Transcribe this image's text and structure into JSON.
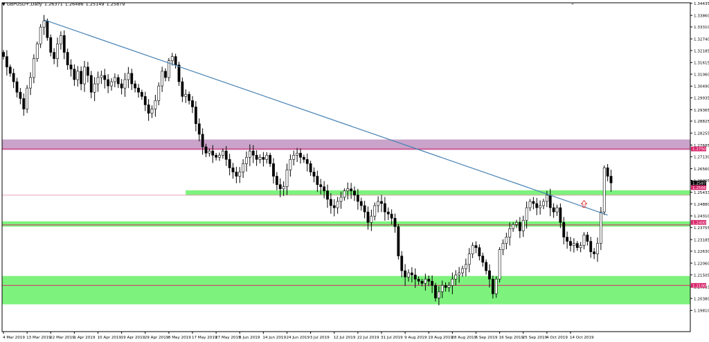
{
  "header": {
    "dropdown_glyph": "▼",
    "symbol": "GBPUSD+,Daily",
    "open": "1.26371",
    "high": "1.26486",
    "low": "1.25149",
    "close": "1.25879"
  },
  "chart_data": {
    "type": "candlestick",
    "symbol": "GBPUSD+",
    "timeframe": "Daily",
    "ylim": [
      1.188,
      1.3446
    ],
    "y_ticks": [
      "1.34435",
      "1.33860",
      "1.33310",
      "1.32740",
      "1.32185",
      "1.31615",
      "1.31060",
      "1.30490",
      "1.29935",
      "1.29365",
      "1.28825",
      "1.28255",
      "1.27685",
      "1.27130",
      "1.26560",
      "1.26005",
      "1.25433",
      "1.24880",
      "1.24310",
      "1.23755",
      "1.23185",
      "1.22630",
      "1.22060",
      "1.21505",
      "1.20935",
      "1.20380",
      "1.19810"
    ],
    "x_ticks": [
      "4 Mar 2019",
      "13 Mar 2019",
      "22 Mar 2019",
      "1 Apr 2019",
      "10 Apr 2019",
      "19 Apr 2019",
      "29 Apr 2019",
      "8 May 2019",
      "17 May 2019",
      "27 May 2019",
      "5 Jun 2019",
      "14 Jun 2019",
      "24 Jun 2019",
      "3 Jul 2019",
      "12 Jul 2019",
      "22 Jul 2019",
      "31 Jul 2019",
      "9 Aug 2019",
      "19 Aug 2019",
      "28 Aug 2019",
      "6 Sep 2019",
      "16 Sep 2019",
      "25 Sep 2019",
      "4 Oct 2019",
      "14 Oct 2019"
    ],
    "close_series": [
      1.319,
      1.314,
      1.311,
      1.307,
      1.302,
      1.299,
      1.294,
      1.304,
      1.309,
      1.318,
      1.325,
      1.333,
      1.336,
      1.328,
      1.321,
      1.318,
      1.325,
      1.329,
      1.321,
      1.315,
      1.313,
      1.308,
      1.312,
      1.306,
      1.314,
      1.31,
      1.302,
      1.306,
      1.309,
      1.31,
      1.308,
      1.305,
      1.307,
      1.309,
      1.306,
      1.304,
      1.308,
      1.311,
      1.306,
      1.304,
      1.302,
      1.3,
      1.296,
      1.292,
      1.294,
      1.298,
      1.305,
      1.312,
      1.309,
      1.317,
      1.319,
      1.315,
      1.307,
      1.3,
      1.301,
      1.298,
      1.295,
      1.287,
      1.282,
      1.276,
      1.273,
      1.274,
      1.272,
      1.271,
      1.272,
      1.274,
      1.27,
      1.266,
      1.264,
      1.262,
      1.264,
      1.268,
      1.271,
      1.274,
      1.272,
      1.27,
      1.271,
      1.27,
      1.272,
      1.268,
      1.262,
      1.258,
      1.256,
      1.257,
      1.265,
      1.27,
      1.272,
      1.273,
      1.271,
      1.27,
      1.268,
      1.264,
      1.262,
      1.258,
      1.257,
      1.255,
      1.251,
      1.248,
      1.247,
      1.25,
      1.252,
      1.255,
      1.256,
      1.255,
      1.253,
      1.25,
      1.248,
      1.245,
      1.24,
      1.243,
      1.248,
      1.25,
      1.249,
      1.245,
      1.244,
      1.242,
      1.238,
      1.224,
      1.217,
      1.214,
      1.216,
      1.215,
      1.213,
      1.212,
      1.211,
      1.213,
      1.212,
      1.21,
      1.204,
      1.207,
      1.21,
      1.209,
      1.21,
      1.213,
      1.215,
      1.216,
      1.218,
      1.22,
      1.225,
      1.229,
      1.228,
      1.224,
      1.221,
      1.217,
      1.213,
      1.206,
      1.213,
      1.227,
      1.23,
      1.233,
      1.237,
      1.239,
      1.24,
      1.236,
      1.241,
      1.247,
      1.25,
      1.249,
      1.247,
      1.248,
      1.25,
      1.253,
      1.247,
      1.245,
      1.247,
      1.24,
      1.233,
      1.231,
      1.229,
      1.23,
      1.228,
      1.229,
      1.234,
      1.231,
      1.226,
      1.225,
      1.23,
      1.245,
      1.266,
      1.262,
      1.2588
    ],
    "trendline": {
      "from": [
        12,
        1.3365
      ],
      "to": [
        179,
        1.2435
      ],
      "color": "#4682b4"
    },
    "zones": [
      {
        "low": 1.2745,
        "high": 1.2795,
        "color": "#c9a3c9"
      },
      {
        "low": 1.2528,
        "high": 1.2553,
        "color": "#7df27d",
        "start_index": 54
      },
      {
        "low": 1.238,
        "high": 1.2405,
        "color": "#7df27d"
      },
      {
        "low": 1.201,
        "high": 1.2145,
        "color": "#7df27d"
      }
    ],
    "level_lines": [
      {
        "value": 1.275,
        "color": "#d9266b"
      },
      {
        "value": 1.253,
        "color": "#e8a2b6"
      },
      {
        "value": 1.2388,
        "color": "#d9266b"
      },
      {
        "value": 1.21,
        "color": "#d9266b"
      }
    ],
    "price_tags": [
      {
        "value": 1.275,
        "label": "1.27500",
        "bg": "#d9266b"
      },
      {
        "value": 1.2588,
        "label": "1.25879",
        "bg": "#000000"
      },
      {
        "value": 1.2566,
        "label": "1.25666",
        "bg": "#d9266b"
      },
      {
        "value": 1.24,
        "label": "1.24000",
        "bg": "#d9266b"
      },
      {
        "value": 1.21,
        "label": "1.21000",
        "bg": "#d9266b"
      }
    ],
    "marker": {
      "type": "up-arrow",
      "index": 172,
      "value": 1.2488,
      "color": "#e03030"
    },
    "colors": {
      "bull_fill": "#ffffff",
      "bear_fill": "#000000",
      "wick": "#000000",
      "grid": "none",
      "axis": "#000000"
    }
  }
}
